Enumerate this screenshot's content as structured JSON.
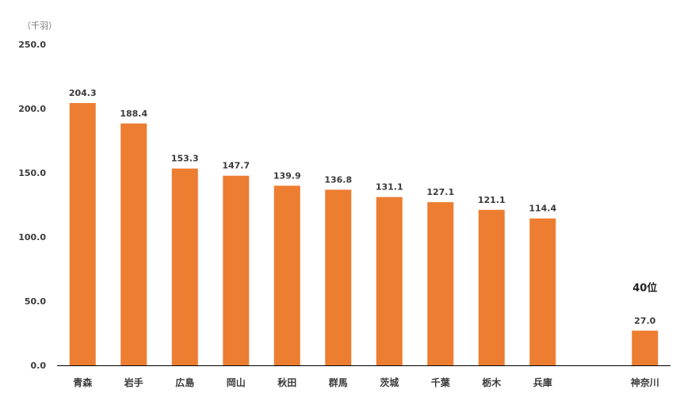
{
  "chart_data": {
    "type": "bar",
    "unit_label": "（千羽）",
    "categories": [
      "青森",
      "岩手",
      "広島",
      "岡山",
      "秋田",
      "群馬",
      "茨城",
      "千葉",
      "栃木",
      "兵庫",
      "",
      "神奈川"
    ],
    "values": [
      204.3,
      188.4,
      153.3,
      147.7,
      139.9,
      136.8,
      131.1,
      127.1,
      121.1,
      114.4,
      null,
      27.0
    ],
    "value_labels": [
      "204.3",
      "188.4",
      "153.3",
      "147.7",
      "139.9",
      "136.8",
      "131.1",
      "127.1",
      "121.1",
      "114.4",
      "",
      "27.0"
    ],
    "y_ticks": [
      "0.0",
      "50.0",
      "100.0",
      "150.0",
      "200.0",
      "250.0"
    ],
    "ylim": [
      0,
      250
    ],
    "bar_color": "#ED7D31",
    "axis_color": "#000000",
    "annotation": {
      "category": "神奈川",
      "text": "40位"
    },
    "grid": false
  }
}
